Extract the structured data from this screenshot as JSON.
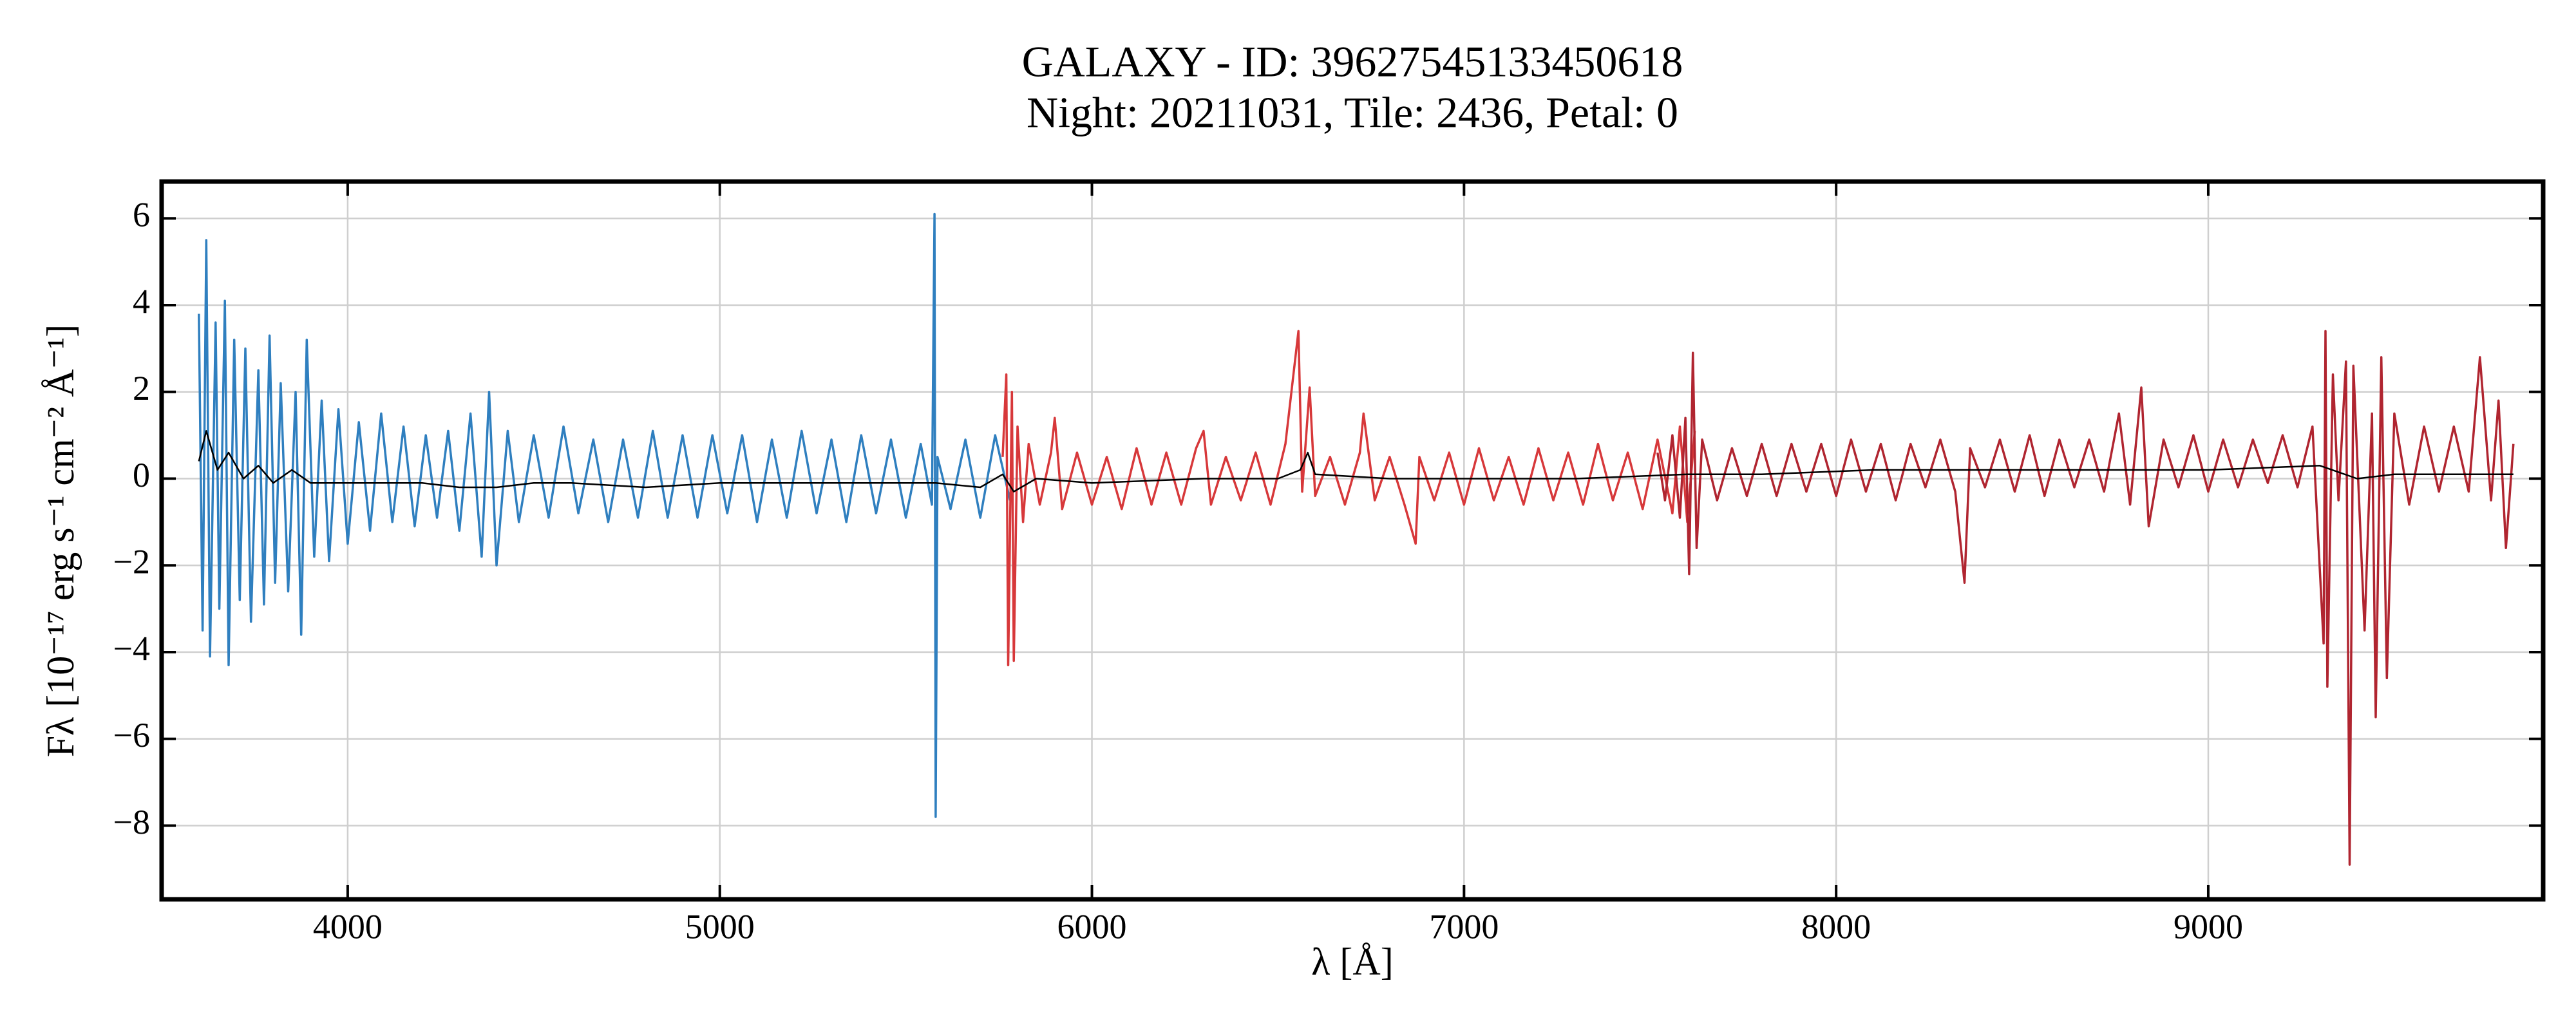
{
  "chart_data": {
    "type": "line",
    "title": "GALAXY - ID: 39627545133450618",
    "subtitle": "Night: 20211031, Tile: 2436, Petal: 0",
    "xlabel": "λ [Å]",
    "ylabel": "Fλ [10⁻¹⁷ erg s⁻¹ cm⁻² Å⁻¹]",
    "xlim": [
      3500,
      9900
    ],
    "ylim": [
      -9.7,
      6.85
    ],
    "xticks": [
      4000,
      5000,
      6000,
      7000,
      8000,
      9000
    ],
    "yticks": [
      {
        "value": -8,
        "label": "−8"
      },
      {
        "value": -6,
        "label": "−6"
      },
      {
        "value": -4,
        "label": "−4"
      },
      {
        "value": -2,
        "label": "−2"
      },
      0,
      2,
      4,
      6
    ],
    "grid": true,
    "series": [
      {
        "color": "#2f7fbf",
        "x": [
          3600,
          3610,
          3620,
          3630,
          3645,
          3655,
          3670,
          3680,
          3695,
          3710,
          3725,
          3740,
          3760,
          3775,
          3790,
          3805,
          3820,
          3840,
          3860,
          3875,
          3890,
          3910,
          3930,
          3950,
          3975,
          4000,
          4030,
          4060,
          4090,
          4120,
          4150,
          4180,
          4210,
          4240,
          4270,
          4300,
          4330,
          4360,
          4380,
          4400,
          4430,
          4460,
          4500,
          4540,
          4580,
          4620,
          4660,
          4700,
          4740,
          4780,
          4820,
          4860,
          4900,
          4940,
          4980,
          5020,
          5060,
          5100,
          5140,
          5180,
          5220,
          5260,
          5300,
          5340,
          5380,
          5420,
          5460,
          5500,
          5540,
          5570,
          5577,
          5580,
          5585,
          5620,
          5660,
          5700,
          5740,
          5780
        ],
        "values": [
          3.8,
          -3.5,
          5.5,
          -4.1,
          3.6,
          -3.0,
          4.1,
          -4.3,
          3.2,
          -2.8,
          3.0,
          -3.3,
          2.5,
          -2.9,
          3.3,
          -2.4,
          2.2,
          -2.6,
          2.0,
          -3.6,
          3.2,
          -1.8,
          1.8,
          -1.9,
          1.6,
          -1.5,
          1.3,
          -1.2,
          1.5,
          -1.0,
          1.2,
          -1.1,
          1.0,
          -0.9,
          1.1,
          -1.2,
          1.5,
          -1.8,
          2.0,
          -2.0,
          1.1,
          -1.0,
          1.0,
          -0.9,
          1.2,
          -0.8,
          0.9,
          -1.0,
          0.9,
          -0.9,
          1.1,
          -0.9,
          1.0,
          -0.9,
          1.0,
          -0.8,
          1.0,
          -1.0,
          0.9,
          -0.9,
          1.1,
          -0.8,
          0.9,
          -1.0,
          1.0,
          -0.8,
          0.9,
          -0.9,
          0.8,
          -0.6,
          6.1,
          -7.8,
          0.5,
          -0.7,
          0.9,
          -0.9,
          1.0,
          -0.5
        ]
      },
      {
        "color": "#d7383a",
        "x": [
          5760,
          5770,
          5775,
          5785,
          5790,
          5800,
          5815,
          5830,
          5860,
          5890,
          5900,
          5920,
          5960,
          6000,
          6040,
          6080,
          6120,
          6160,
          6200,
          6240,
          6280,
          6300,
          6320,
          6360,
          6400,
          6440,
          6480,
          6520,
          6555,
          6565,
          6585,
          6600,
          6640,
          6680,
          6720,
          6730,
          6760,
          6800,
          6840,
          6870,
          6880,
          6920,
          6960,
          7000,
          7040,
          7080,
          7120,
          7160,
          7200,
          7240,
          7280,
          7320,
          7360,
          7400,
          7440,
          7480,
          7520,
          7560,
          7580,
          7600,
          7620
        ],
        "values": [
          0.5,
          2.4,
          -4.3,
          2.0,
          -4.2,
          1.2,
          -1.0,
          0.8,
          -0.6,
          0.6,
          1.4,
          -0.7,
          0.6,
          -0.6,
          0.5,
          -0.7,
          0.7,
          -0.6,
          0.6,
          -0.6,
          0.7,
          1.1,
          -0.6,
          0.5,
          -0.5,
          0.6,
          -0.6,
          0.8,
          3.4,
          -0.3,
          2.1,
          -0.4,
          0.5,
          -0.6,
          0.6,
          1.5,
          -0.5,
          0.5,
          -0.6,
          -1.5,
          0.5,
          -0.5,
          0.6,
          -0.6,
          0.7,
          -0.5,
          0.5,
          -0.6,
          0.7,
          -0.5,
          0.6,
          -0.6,
          0.8,
          -0.5,
          0.6,
          -0.7,
          0.9,
          -0.8,
          1.2,
          -1.0,
          1.1
        ]
      },
      {
        "color": "#b02530",
        "x": [
          7520,
          7540,
          7560,
          7580,
          7595,
          7605,
          7615,
          7625,
          7640,
          7680,
          7720,
          7760,
          7800,
          7840,
          7880,
          7920,
          7960,
          8000,
          8040,
          8080,
          8120,
          8160,
          8200,
          8240,
          8280,
          8320,
          8345,
          8360,
          8400,
          8440,
          8480,
          8520,
          8560,
          8600,
          8640,
          8680,
          8720,
          8760,
          8790,
          8820,
          8840,
          8880,
          8920,
          8960,
          9000,
          9040,
          9080,
          9120,
          9160,
          9200,
          9240,
          9280,
          9310,
          9315,
          9320,
          9335,
          9350,
          9370,
          9380,
          9390,
          9420,
          9440,
          9450,
          9465,
          9480,
          9500,
          9540,
          9580,
          9620,
          9660,
          9700,
          9730,
          9760,
          9780,
          9800,
          9820
        ],
        "values": [
          0.6,
          -0.5,
          1.0,
          -0.9,
          1.4,
          -2.2,
          2.9,
          -1.6,
          0.9,
          -0.5,
          0.7,
          -0.4,
          0.8,
          -0.4,
          0.8,
          -0.3,
          0.8,
          -0.4,
          0.9,
          -0.3,
          0.8,
          -0.5,
          0.8,
          -0.2,
          0.9,
          -0.3,
          -2.4,
          0.7,
          -0.2,
          0.9,
          -0.3,
          1.0,
          -0.4,
          0.9,
          -0.2,
          0.9,
          -0.3,
          1.5,
          -0.6,
          2.1,
          -1.1,
          0.9,
          -0.2,
          1.0,
          -0.3,
          0.9,
          -0.2,
          0.9,
          -0.1,
          1.0,
          -0.2,
          1.2,
          -3.8,
          3.4,
          -4.8,
          2.4,
          -0.5,
          2.7,
          -8.9,
          2.6,
          -3.5,
          1.5,
          -5.5,
          2.8,
          -4.6,
          1.5,
          -0.6,
          1.2,
          -0.3,
          1.2,
          -0.3,
          2.8,
          -0.5,
          1.8,
          -1.6,
          0.8
        ]
      },
      {
        "color": "#000000",
        "x": [
          3600,
          3620,
          3650,
          3680,
          3720,
          3760,
          3800,
          3850,
          3900,
          4000,
          4100,
          4200,
          4300,
          4400,
          4500,
          4600,
          4800,
          5000,
          5200,
          5400,
          5580,
          5700,
          5760,
          5790,
          5850,
          6000,
          6300,
          6500,
          6560,
          6580,
          6600,
          6800,
          7000,
          7300,
          7600,
          7800,
          8100,
          8400,
          8700,
          9000,
          9300,
          9400,
          9500,
          9700,
          9820
        ],
        "values": [
          0.4,
          1.1,
          0.2,
          0.6,
          0.0,
          0.3,
          -0.1,
          0.2,
          -0.1,
          -0.1,
          -0.1,
          -0.1,
          -0.2,
          -0.2,
          -0.1,
          -0.1,
          -0.2,
          -0.1,
          -0.1,
          -0.1,
          -0.1,
          -0.2,
          0.1,
          -0.3,
          0.0,
          -0.1,
          0.0,
          0.0,
          0.2,
          0.6,
          0.1,
          0.0,
          0.0,
          0.0,
          0.1,
          0.1,
          0.2,
          0.2,
          0.2,
          0.2,
          0.3,
          0.0,
          0.1,
          0.1,
          0.1
        ]
      }
    ]
  }
}
